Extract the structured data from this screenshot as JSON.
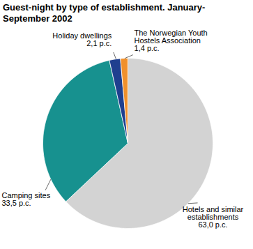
{
  "chart_data": {
    "type": "pie",
    "title": "Guest-night by type of establishment. January-September 2002",
    "categories": [
      "Hotels and similar establishments",
      "Camping sites",
      "Holiday dwellings",
      "The Norwegian Youth Hostels Association"
    ],
    "values": [
      63.0,
      33.5,
      2.1,
      1.4
    ],
    "value_labels": [
      "63,0 p.c.",
      "33,5 p.c.",
      "2,1 p.c.",
      "1,4 p.c."
    ],
    "colors": [
      "#d3d3d3",
      "#17918f",
      "#1f3f8f",
      "#f0902c"
    ],
    "data_labels": true
  }
}
